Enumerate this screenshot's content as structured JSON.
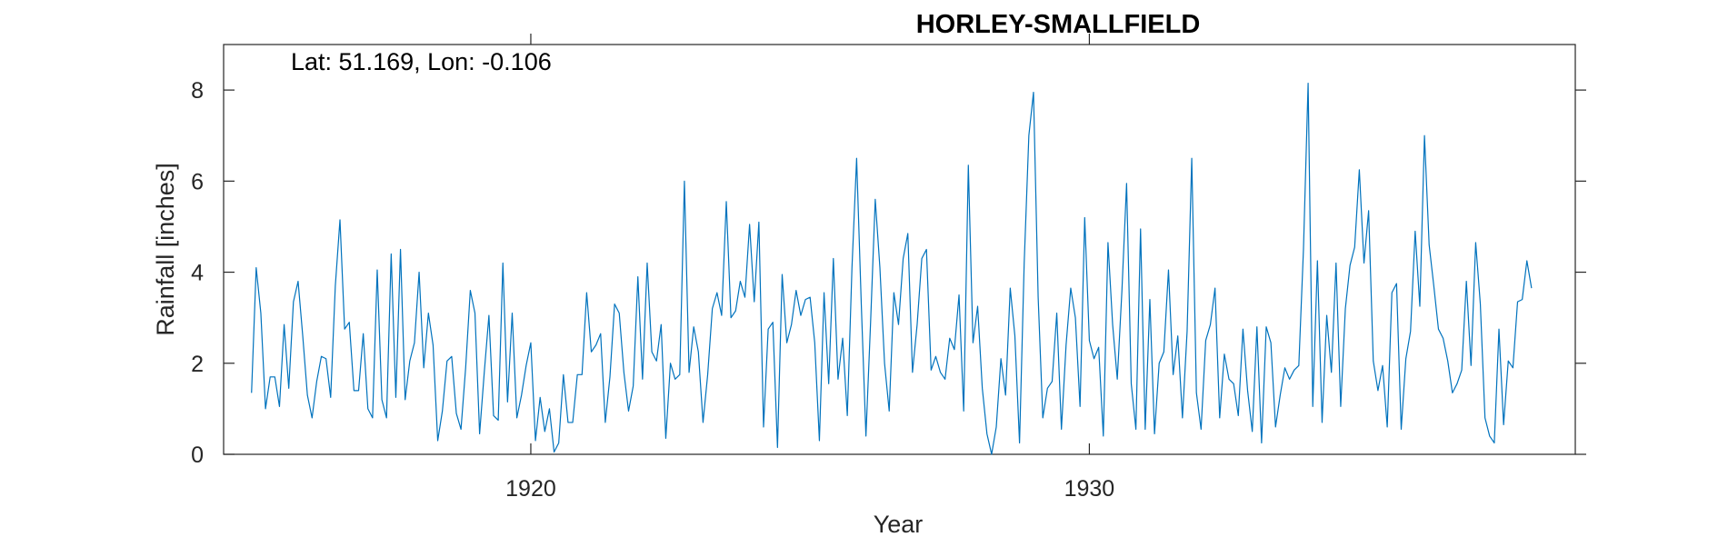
{
  "chart_data": {
    "type": "line",
    "title": "HORLEY-SMALLFIELD",
    "annotation": "Lat: 51.169, Lon: -0.106",
    "xlabel": "Year",
    "ylabel": "Rainfall [inches]",
    "xlim": [
      1914.5,
      1938.7
    ],
    "ylim": [
      0,
      9
    ],
    "xticks": [
      1920,
      1930
    ],
    "xtick_labels": [
      "1920",
      "1930"
    ],
    "yticks": [
      0,
      2,
      4,
      6,
      8
    ],
    "ytick_labels": [
      "0",
      "2",
      "4",
      "6",
      "8"
    ],
    "grid": false,
    "line_color": "#0072BD",
    "x_start": 1915.0,
    "x_step": 0.0833333,
    "series": [
      {
        "values": [
          1.35,
          4.1,
          3.1,
          1.0,
          1.7,
          1.7,
          1.05,
          2.85,
          1.45,
          3.35,
          3.8,
          2.6,
          1.3,
          0.8,
          1.6,
          2.15,
          2.1,
          1.25,
          3.7,
          5.15,
          2.75,
          2.9,
          1.4,
          1.4,
          2.65,
          1.0,
          0.8,
          4.05,
          1.2,
          0.8,
          4.4,
          1.25,
          4.5,
          1.2,
          2.05,
          2.45,
          4.0,
          1.9,
          3.1,
          2.4,
          0.3,
          0.95,
          2.05,
          2.15,
          0.9,
          0.55,
          1.9,
          3.6,
          3.1,
          0.45,
          1.8,
          3.05,
          0.85,
          0.75,
          4.2,
          1.15,
          3.1,
          0.8,
          1.3,
          1.95,
          2.45,
          0.3,
          1.25,
          0.5,
          1.0,
          0.05,
          0.25,
          1.75,
          0.7,
          0.7,
          1.75,
          1.75,
          3.55,
          2.25,
          2.4,
          2.65,
          0.7,
          1.7,
          3.3,
          3.1,
          1.8,
          0.95,
          1.5,
          3.9,
          1.65,
          4.2,
          2.25,
          2.05,
          2.85,
          0.35,
          2.0,
          1.65,
          1.75,
          6.0,
          1.8,
          2.8,
          2.25,
          0.7,
          1.75,
          3.2,
          3.55,
          3.05,
          5.55,
          3.0,
          3.15,
          3.8,
          3.45,
          5.05,
          3.35,
          5.1,
          0.6,
          2.75,
          2.9,
          0.15,
          3.95,
          2.45,
          2.85,
          3.6,
          3.05,
          3.4,
          3.45,
          2.45,
          0.3,
          3.55,
          1.55,
          4.3,
          1.65,
          2.55,
          0.85,
          4.1,
          6.5,
          3.3,
          0.4,
          2.9,
          5.6,
          4.1,
          2.0,
          0.95,
          3.55,
          2.85,
          4.3,
          4.85,
          1.8,
          2.85,
          4.3,
          4.5,
          1.85,
          2.15,
          1.8,
          1.65,
          2.55,
          2.3,
          3.5,
          0.95,
          6.35,
          2.45,
          3.25,
          1.45,
          0.45,
          0.0,
          0.6,
          2.1,
          1.3,
          3.65,
          2.6,
          0.25,
          4.2,
          7.0,
          7.95,
          3.45,
          0.8,
          1.45,
          1.6,
          3.1,
          0.55,
          2.4,
          3.65,
          3.0,
          1.05,
          5.2,
          2.5,
          2.1,
          2.35,
          0.4,
          4.65,
          2.85,
          1.65,
          3.6,
          5.95,
          1.55,
          0.55,
          4.95,
          0.55,
          3.4,
          0.45,
          2.0,
          2.25,
          4.05,
          1.75,
          2.6,
          0.8,
          2.7,
          6.5,
          1.35,
          0.55,
          2.5,
          2.85,
          3.65,
          0.8,
          2.2,
          1.65,
          1.55,
          0.85,
          2.75,
          1.4,
          0.5,
          2.8,
          0.25,
          2.8,
          2.45,
          0.6,
          1.3,
          1.9,
          1.65,
          1.85,
          1.95,
          4.5,
          8.15,
          1.05,
          4.25,
          0.7,
          3.05,
          1.8,
          4.2,
          1.05,
          3.2,
          4.15,
          4.55,
          6.25,
          4.2,
          5.35,
          2.05,
          1.4,
          1.95,
          0.6,
          3.55,
          3.75,
          0.55,
          2.1,
          2.7,
          4.9,
          3.25,
          7.0,
          4.6,
          3.7,
          2.75,
          2.55,
          2.05,
          1.35,
          1.55,
          1.85,
          3.8,
          1.95,
          4.65,
          3.3,
          0.8,
          0.4,
          0.25,
          2.75,
          0.65,
          2.05,
          1.9,
          3.35,
          3.4,
          4.25,
          3.65
        ]
      }
    ]
  }
}
